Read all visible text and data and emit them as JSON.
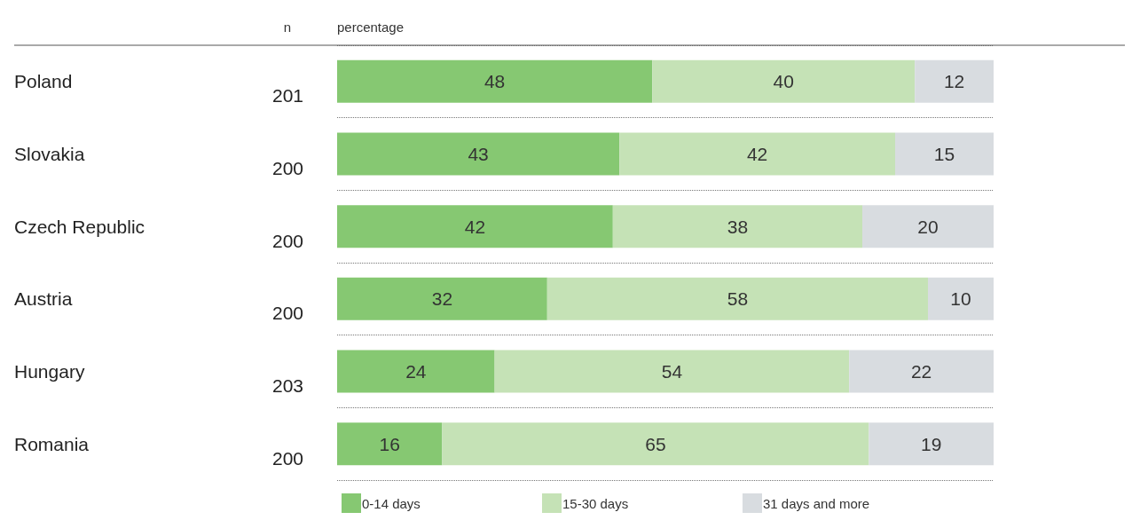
{
  "chart_data": {
    "type": "bar",
    "orientation": "horizontal",
    "stacked": true,
    "data_labels": true,
    "grid": "y",
    "line_style": "dotted",
    "legend": "bottom",
    "tick_labels": "y",
    "xlim": [
      0,
      100
    ],
    "categories": [
      "Poland",
      "Slovakia",
      "Czech Republic",
      "Austria",
      "Hungary",
      "Romania"
    ],
    "series": [
      {
        "name": "0-14 days",
        "color": "#86c872",
        "values": [
          48,
          43,
          42,
          32,
          24,
          16
        ]
      },
      {
        "name": "15-30 days",
        "color": "#c5e2b6",
        "values": [
          40,
          42,
          38,
          58,
          54,
          65
        ]
      },
      {
        "name": "31 days and more",
        "color": "#d8dce0",
        "values": [
          12,
          15,
          20,
          10,
          22,
          19
        ]
      }
    ],
    "annotations": [
      "n",
      "percentage",
      "201",
      "200",
      "200",
      "200",
      "203",
      "200"
    ]
  }
}
